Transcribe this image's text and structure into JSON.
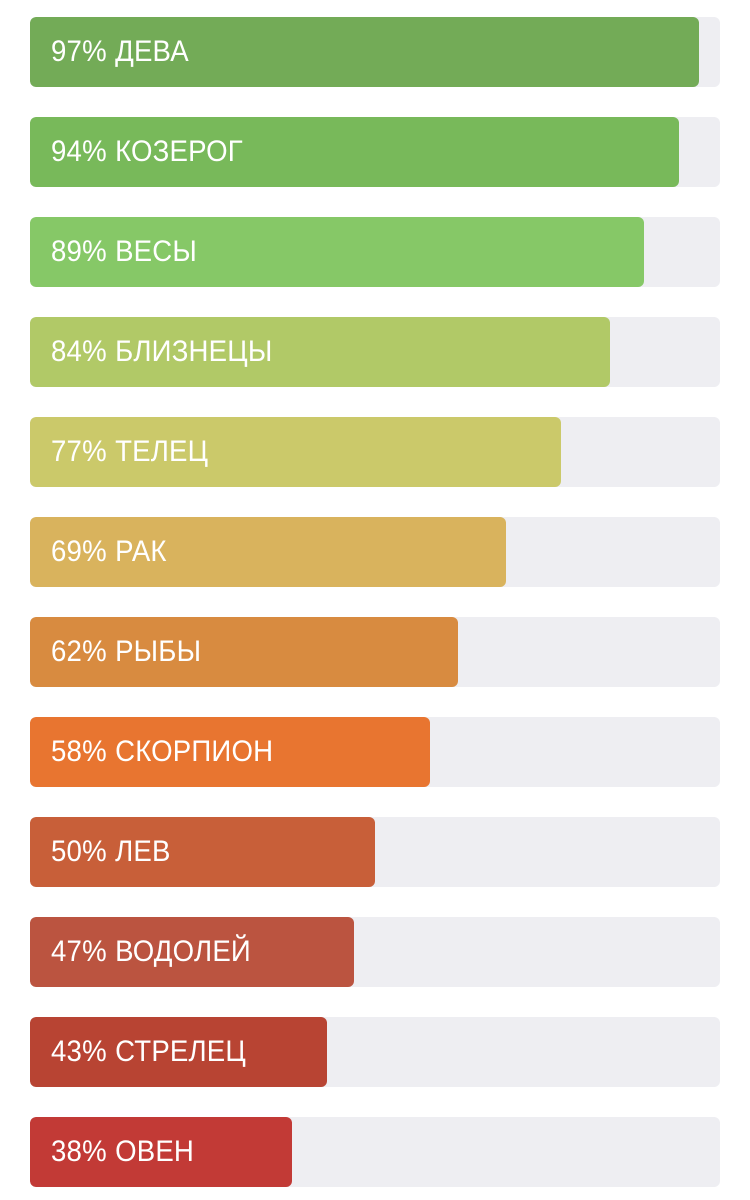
{
  "chart_data": {
    "type": "bar",
    "orientation": "horizontal",
    "xlim": [
      0,
      100
    ],
    "categories": [
      "ДЕВА",
      "КОЗЕРОГ",
      "ВЕСЫ",
      "БЛИЗНЕЦЫ",
      "ТЕЛЕЦ",
      "РАК",
      "РЫБЫ",
      "СКОРПИОН",
      "ЛЕВ",
      "ВОДОЛЕЙ",
      "СТРЕЛЕЦ",
      "ОВЕН"
    ],
    "values": [
      97,
      94,
      89,
      84,
      77,
      69,
      62,
      58,
      50,
      47,
      43,
      38
    ],
    "value_labels": [
      "97%",
      "94%",
      "89%",
      "84%",
      "77%",
      "69%",
      "62%",
      "58%",
      "50%",
      "47%",
      "43%",
      "38%"
    ],
    "bar_colors": [
      "#73ab57",
      "#78b95a",
      "#86c867",
      "#b1c967",
      "#cbc96a",
      "#d9b35d",
      "#d88b40",
      "#e87530",
      "#c85f39",
      "#bb5440",
      "#b84433",
      "#c23a36"
    ],
    "track_color": "#eeeef2",
    "label_color": "#ffffff"
  }
}
